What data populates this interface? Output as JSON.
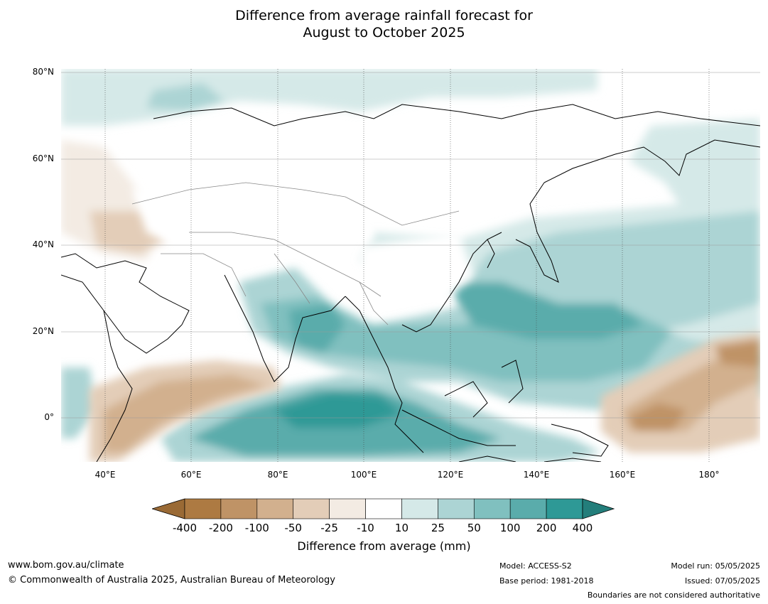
{
  "title_line1": "Difference from average rainfall forecast for",
  "title_line2": "August to October 2025",
  "map": {
    "lat_labels": [
      "80°N",
      "60°N",
      "40°N",
      "20°N",
      "0°"
    ],
    "lon_labels": [
      "40°E",
      "60°E",
      "80°E",
      "100°E",
      "120°E",
      "140°E",
      "160°E",
      "180°"
    ]
  },
  "colorbar": {
    "ticks": [
      "-400",
      "-200",
      "-100",
      "-50",
      "-25",
      "-10",
      "10",
      "25",
      "50",
      "100",
      "200",
      "400"
    ],
    "colors": [
      "#ad7a42",
      "#bf9366",
      "#d2b08e",
      "#e3cdb8",
      "#f3ebe3",
      "#ffffff",
      "#d5e9e8",
      "#acd4d4",
      "#80c0bf",
      "#5aacab",
      "#2e9996"
    ],
    "low_extend_color": "#9a6a35",
    "high_extend_color": "#237e7b",
    "label": "Difference from average (mm)"
  },
  "footer": {
    "website": "www.bom.gov.au/climate",
    "copyright": "© Commonwealth of Australia 2025, Australian Bureau of Meteorology",
    "model": "Model: ACCESS-S2",
    "base_period": "Base period: 1981-2018",
    "model_run": "Model run: 05/05/2025",
    "issued": "Issued: 07/05/2025",
    "disclaimer": "Boundaries are not considered authoritative"
  }
}
